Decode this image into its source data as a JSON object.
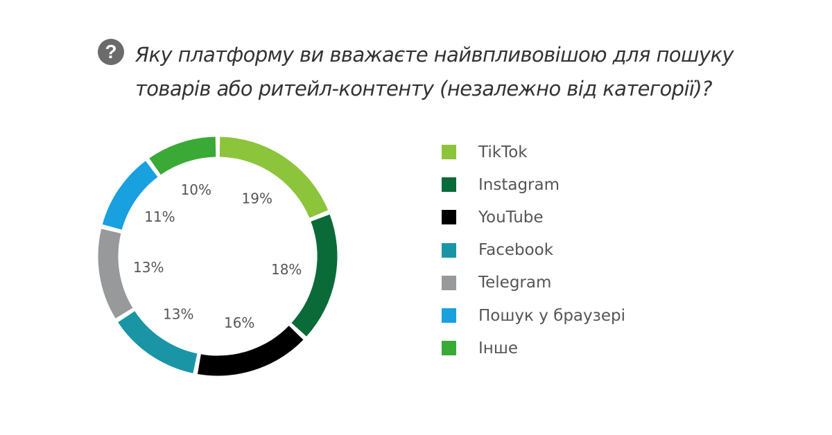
{
  "chart_data": {
    "type": "pie",
    "donut": true,
    "title_lines": [
      "Яку платформу ви вважаєте найвпливовішою для пошуку",
      "товарів або ритейл-контенту (незалежно від категорії)?"
    ],
    "title_icon": "question-circle-icon",
    "categories": [
      "TikTok",
      "Instagram",
      "YouTube",
      "Facebook",
      "Telegram",
      "Пошук у браузері",
      "Інше"
    ],
    "values": [
      19,
      18,
      16,
      13,
      13,
      11,
      10
    ],
    "labels": [
      "19%",
      "18%",
      "16%",
      "13%",
      "13%",
      "11%",
      "10%"
    ],
    "colors": [
      "#8cc43c",
      "#0b6b38",
      "#000000",
      "#1a95a6",
      "#97999b",
      "#18a0df",
      "#3aa935"
    ],
    "legend_position": "right",
    "unit": "%"
  }
}
